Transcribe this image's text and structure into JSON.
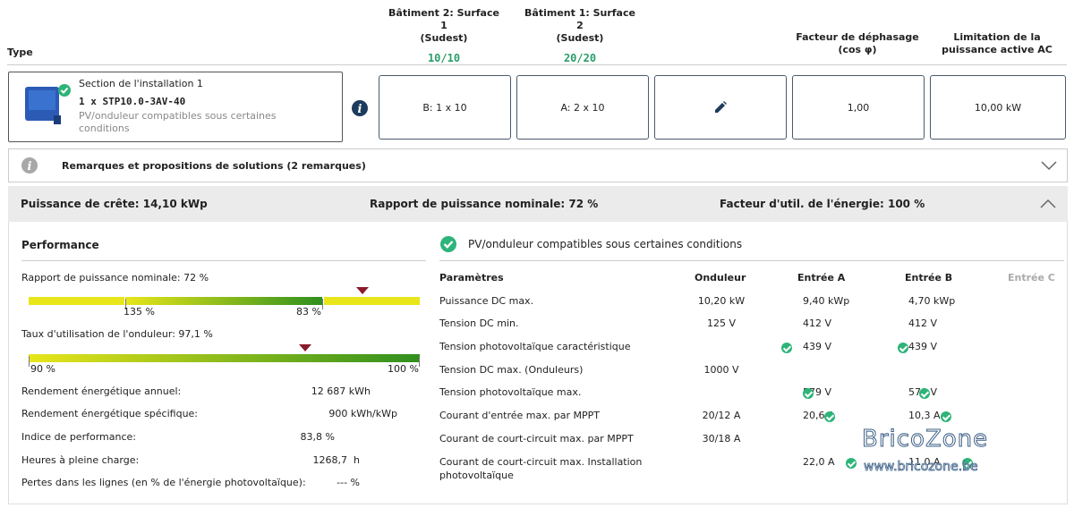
{
  "header": {
    "type_label": "Type",
    "col1": {
      "title": "Bâtiment 2: Surface 1",
      "sub": "(Sudest)",
      "count": "10/10"
    },
    "col2": {
      "title": "Bâtiment 1: Surface 2",
      "sub": "(Sudest)",
      "count": "20/20"
    },
    "col3": {
      "title": "Facteur de déphasage",
      "sub": "(cos φ)"
    },
    "col4": {
      "title": "Limitation de la",
      "sub": "puissance active AC"
    }
  },
  "installation": {
    "section": "Section de l'installation 1",
    "model": "1 x STP10.0-3AV-40",
    "compat": "PV/onduleur compatibles sous certaines conditions"
  },
  "boxes": {
    "b1": "B: 1 x 10",
    "b2": "A: 2 x 10",
    "b4": "1,00",
    "b5": "10,00 kW"
  },
  "remarks": {
    "label": "Remarques et propositions de solutions (2 remarques)"
  },
  "summary": {
    "peak": "Puissance de crête: 14,10 kWp",
    "ratio": "Rapport de puissance nominale: 72 %",
    "energy": "Facteur d'util. de l'énergie: 100 %"
  },
  "performance": {
    "title": "Performance",
    "ratio_label": "Rapport de puissance nominale: 72 %",
    "ratio_ticks": [
      "135 %",
      "83 %"
    ],
    "ratio_marker_pct": 72,
    "inv_label": "Taux d'utilisation de l'onduleur: 97,1 %",
    "inv_ticks": [
      "90 %",
      "100 %"
    ],
    "inv_marker_pct": 97.1,
    "rows": [
      {
        "label": "Rendement énergétique annuel:",
        "value": "12 687 kWh"
      },
      {
        "label": "Rendement énergétique spécifique:",
        "value": "900 kWh/kWp"
      },
      {
        "label": "Indice de performance:",
        "value": "83,8 %"
      },
      {
        "label": "Heures à pleine charge:",
        "value": "1268,7  h"
      },
      {
        "label": "Pertes dans les lignes (en % de l'énergie photovoltaïque):",
        "value": "--- %"
      }
    ]
  },
  "compat": {
    "title": "PV/onduleur compatibles sous certaines conditions",
    "headers": [
      "Paramètres",
      "Onduleur",
      "Entrée A",
      "Entrée B",
      "Entrée C"
    ],
    "rows": [
      {
        "p": "Puissance DC max.",
        "o": "10,20 kW",
        "a": "9,40 kWp",
        "b": "4,70 kWp",
        "ca": false,
        "cb": false
      },
      {
        "p": "Tension DC min.",
        "o": "125 V",
        "a": "412 V",
        "b": "412 V",
        "ca": false,
        "cb": false
      },
      {
        "p": "Tension photovoltaïque caractéristique",
        "o": "",
        "a": "439 V",
        "b": "439 V",
        "ca": true,
        "cb": true
      },
      {
        "p": "Tension DC max. (Onduleurs)",
        "o": "1000 V",
        "a": "",
        "b": "",
        "ca": false,
        "cb": false
      },
      {
        "p": "Tension photovoltaïque max.",
        "o": "",
        "a": "579 V",
        "b": "579 V",
        "ca": true,
        "cb": true
      },
      {
        "p": "Courant d'entrée max. par MPPT",
        "o": "20/12 A",
        "a": "20,6 A",
        "b": "10,3 A",
        "ca": true,
        "cb": true
      },
      {
        "p": "Courant de court-circuit max. par MPPT",
        "o": "30/18 A",
        "a": "",
        "b": "",
        "ca": false,
        "cb": false
      },
      {
        "p": "Courant de court-circuit max. Installation",
        "p2": "photovoltaïque",
        "o": "",
        "a": "22,0 A",
        "b": "11,0 A",
        "ca": true,
        "cb": true
      }
    ]
  },
  "watermark": {
    "brand": "BricoZone",
    "url": "www.bricozone.be"
  }
}
